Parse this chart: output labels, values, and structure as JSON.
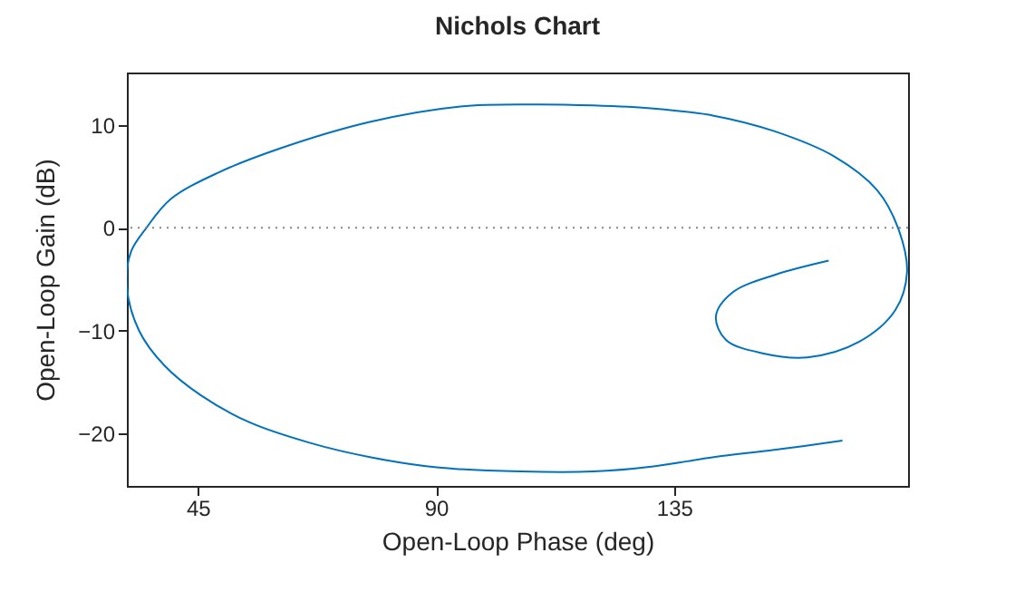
{
  "chart_data": {
    "type": "line",
    "title": "Nichols Chart",
    "xlabel": "Open-Loop Phase (deg)",
    "ylabel": "Open-Loop Gain (dB)",
    "xlim": [
      31.6,
      179.2
    ],
    "ylim": [
      -25.1,
      15.1
    ],
    "xticks": [
      45,
      90,
      135
    ],
    "yticks": [
      -20,
      -10,
      0,
      10
    ],
    "grid": false,
    "marker": "none",
    "line_style": "solid",
    "x": [
      164.2,
      153.9,
      146,
      142.9,
      144.8,
      151.7,
      160.2,
      169.9,
      176.8,
      179.0,
      177.3,
      173.3,
      165.4,
      153.9,
      142.5,
      131.1,
      119.7,
      108.3,
      94.6,
      77.5,
      60.4,
      49,
      39.9,
      35.3,
      32.4,
      31.6,
      33.9,
      38.7,
      45.6,
      54.7,
      66.1,
      77.5,
      90.1,
      106,
      119.7,
      131.1,
      142.5,
      153.9,
      166.8
    ],
    "series": [
      {
        "color": "#0072bd",
        "values": [
          -3.2,
          -4.6,
          -6.3,
          -8.6,
          -10.9,
          -12.2,
          -12.6,
          -11.1,
          -8.0,
          -4.3,
          0,
          3.7,
          6.9,
          9.4,
          10.9,
          11.6,
          11.9,
          12.0,
          11.8,
          10.3,
          7.7,
          5.4,
          2.8,
          0,
          -2.3,
          -5.7,
          -10,
          -13.4,
          -16.3,
          -18.9,
          -20.9,
          -22.3,
          -23.3,
          -23.7,
          -23.7,
          -23.2,
          -22.3,
          -21.6,
          -20.7
        ]
      }
    ],
    "ref_lines": [
      {
        "axis": "y",
        "value": 0,
        "color": "#888888",
        "line_style": "dotted"
      }
    ]
  }
}
